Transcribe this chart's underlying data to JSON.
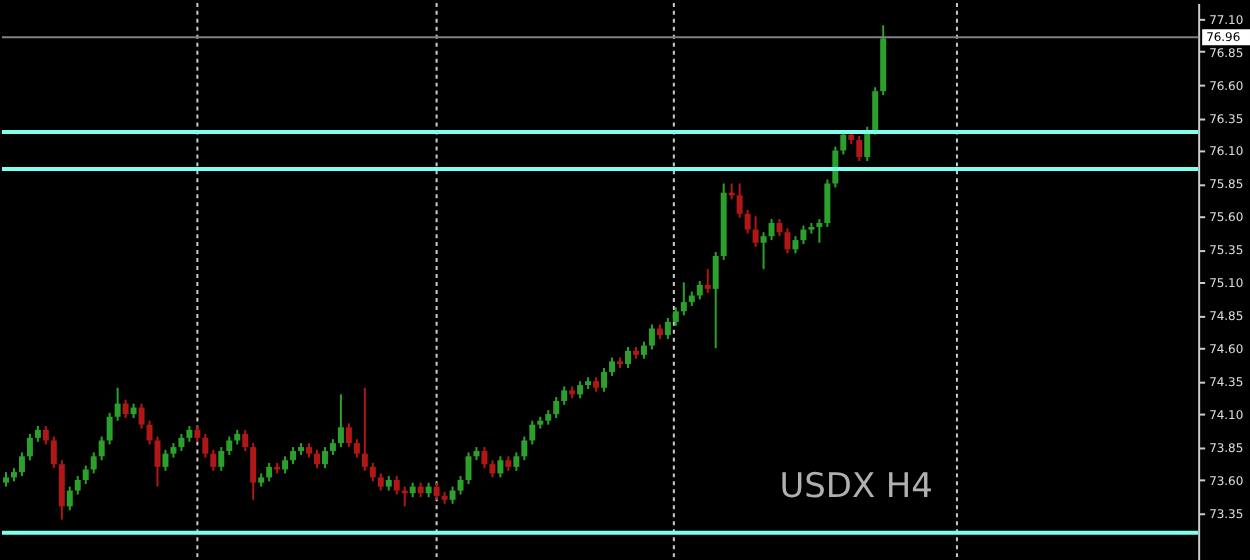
{
  "chart_data": {
    "type": "candlestick",
    "categories": [
      null,
      null,
      null,
      null,
      null,
      null,
      null,
      null,
      null,
      null,
      null,
      null,
      null,
      null,
      null,
      null,
      null,
      null,
      null,
      null,
      null,
      null,
      null,
      null,
      null,
      null,
      null,
      null,
      null,
      null,
      null,
      null,
      null,
      null,
      null,
      null,
      null,
      null,
      null,
      null,
      null,
      null,
      null,
      null,
      null,
      null,
      null,
      null,
      null,
      null,
      null,
      null,
      null,
      null,
      null,
      null,
      null,
      null,
      null,
      null,
      null,
      null,
      null,
      null,
      null,
      null,
      null,
      null,
      null,
      null,
      null,
      null,
      null,
      null,
      null,
      null,
      null,
      null,
      null,
      null,
      null,
      null,
      null,
      null,
      null,
      null,
      null,
      null,
      null,
      null,
      null,
      null,
      null,
      null,
      null,
      null,
      null,
      null,
      null,
      null,
      null,
      null,
      null,
      null,
      null,
      null,
      null,
      null,
      null,
      null,
      null,
      null,
      null,
      null,
      null,
      null,
      null,
      null,
      null,
      null,
      null,
      null,
      null,
      null,
      null,
      null,
      null,
      null,
      null,
      null,
      null,
      null,
      null,
      null,
      null,
      null,
      null,
      null,
      null,
      null,
      null,
      null,
      null,
      null,
      null,
      null,
      null,
      null,
      null,
      null
    ],
    "ohlc": [
      [
        73.58,
        73.66,
        73.55,
        73.62
      ],
      [
        73.62,
        73.69,
        73.59,
        73.66
      ],
      [
        73.66,
        73.81,
        73.63,
        73.78
      ],
      [
        73.78,
        73.95,
        73.75,
        73.92
      ],
      [
        73.92,
        74.01,
        73.89,
        73.98
      ],
      [
        73.98,
        74.01,
        73.87,
        73.9
      ],
      [
        73.9,
        73.93,
        73.69,
        73.72
      ],
      [
        73.72,
        73.75,
        73.3,
        73.4
      ],
      [
        73.4,
        73.55,
        73.37,
        73.52
      ],
      [
        73.52,
        73.63,
        73.49,
        73.6
      ],
      [
        73.6,
        73.71,
        73.57,
        73.68
      ],
      [
        73.68,
        73.81,
        73.65,
        73.78
      ],
      [
        73.78,
        73.93,
        73.75,
        73.9
      ],
      [
        73.9,
        74.11,
        73.87,
        74.08
      ],
      [
        74.08,
        74.3,
        74.05,
        74.18
      ],
      [
        74.18,
        74.21,
        74.07,
        74.1
      ],
      [
        74.1,
        74.18,
        74.07,
        74.15
      ],
      [
        74.15,
        74.18,
        73.99,
        74.02
      ],
      [
        74.02,
        74.05,
        73.87,
        73.9
      ],
      [
        73.9,
        73.93,
        73.55,
        73.7
      ],
      [
        73.7,
        73.83,
        73.67,
        73.8
      ],
      [
        73.8,
        73.88,
        73.77,
        73.85
      ],
      [
        73.85,
        73.95,
        73.82,
        73.92
      ],
      [
        73.92,
        74.01,
        73.89,
        73.98
      ],
      [
        73.98,
        74.01,
        73.89,
        73.92
      ],
      [
        73.92,
        73.95,
        73.77,
        73.8
      ],
      [
        73.8,
        73.83,
        73.67,
        73.7
      ],
      [
        73.7,
        73.85,
        73.67,
        73.82
      ],
      [
        73.82,
        73.93,
        73.79,
        73.9
      ],
      [
        73.9,
        73.98,
        73.87,
        73.95
      ],
      [
        73.95,
        73.98,
        73.82,
        73.85
      ],
      [
        73.85,
        73.88,
        73.45,
        73.58
      ],
      [
        73.58,
        73.65,
        73.55,
        73.62
      ],
      [
        73.62,
        73.73,
        73.59,
        73.7
      ],
      [
        73.7,
        73.73,
        73.65,
        73.68
      ],
      [
        73.68,
        73.78,
        73.65,
        73.75
      ],
      [
        73.75,
        73.85,
        73.72,
        73.82
      ],
      [
        73.82,
        73.88,
        73.79,
        73.85
      ],
      [
        73.85,
        73.88,
        73.77,
        73.8
      ],
      [
        73.8,
        73.83,
        73.69,
        73.72
      ],
      [
        73.72,
        73.85,
        73.69,
        73.82
      ],
      [
        73.82,
        73.91,
        73.79,
        73.88
      ],
      [
        73.88,
        74.25,
        73.85,
        74.0
      ],
      [
        74.0,
        74.03,
        73.85,
        73.88
      ],
      [
        73.88,
        73.91,
        73.77,
        73.8
      ],
      [
        73.8,
        74.3,
        73.67,
        73.7
      ],
      [
        73.7,
        73.73,
        73.59,
        73.62
      ],
      [
        73.62,
        73.65,
        73.52,
        73.55
      ],
      [
        73.55,
        73.63,
        73.52,
        73.6
      ],
      [
        73.6,
        73.63,
        73.49,
        73.52
      ],
      [
        73.52,
        73.55,
        73.4,
        73.5
      ],
      [
        73.5,
        73.58,
        73.47,
        73.55
      ],
      [
        73.55,
        73.58,
        73.47,
        73.5
      ],
      [
        73.5,
        73.58,
        73.47,
        73.55
      ],
      [
        73.55,
        73.58,
        73.45,
        73.48
      ],
      [
        73.48,
        73.51,
        73.42,
        73.45
      ],
      [
        73.45,
        73.55,
        73.42,
        73.52
      ],
      [
        73.52,
        73.63,
        73.49,
        73.6
      ],
      [
        73.6,
        73.81,
        73.57,
        73.78
      ],
      [
        73.78,
        73.85,
        73.75,
        73.82
      ],
      [
        73.82,
        73.85,
        73.69,
        73.72
      ],
      [
        73.72,
        73.75,
        73.62,
        73.65
      ],
      [
        73.65,
        73.78,
        73.62,
        73.75
      ],
      [
        73.75,
        73.78,
        73.67,
        73.7
      ],
      [
        73.7,
        73.81,
        73.67,
        73.78
      ],
      [
        73.78,
        73.93,
        73.75,
        73.9
      ],
      [
        73.9,
        74.05,
        73.87,
        74.02
      ],
      [
        74.02,
        74.08,
        73.99,
        74.05
      ],
      [
        74.05,
        74.13,
        74.02,
        74.1
      ],
      [
        74.1,
        74.23,
        74.07,
        74.2
      ],
      [
        74.2,
        74.31,
        74.17,
        74.28
      ],
      [
        74.28,
        74.31,
        74.22,
        74.25
      ],
      [
        74.25,
        74.35,
        74.22,
        74.32
      ],
      [
        74.32,
        74.38,
        74.29,
        74.35
      ],
      [
        74.35,
        74.38,
        74.27,
        74.3
      ],
      [
        74.3,
        74.45,
        74.27,
        74.42
      ],
      [
        74.42,
        74.53,
        74.39,
        74.5
      ],
      [
        74.5,
        74.53,
        74.45,
        74.48
      ],
      [
        74.48,
        74.61,
        74.45,
        74.58
      ],
      [
        74.58,
        74.61,
        74.52,
        74.55
      ],
      [
        74.55,
        74.65,
        74.52,
        74.62
      ],
      [
        74.62,
        74.78,
        74.59,
        74.75
      ],
      [
        74.75,
        74.78,
        74.67,
        74.7
      ],
      [
        74.7,
        74.83,
        74.67,
        74.8
      ],
      [
        74.8,
        74.91,
        74.77,
        74.88
      ],
      [
        74.88,
        75.1,
        74.85,
        74.95
      ],
      [
        74.95,
        75.03,
        74.92,
        75.0
      ],
      [
        75.0,
        75.11,
        74.97,
        75.08
      ],
      [
        75.08,
        75.2,
        75.02,
        75.05
      ],
      [
        75.05,
        75.33,
        74.6,
        75.3
      ],
      [
        75.3,
        75.85,
        75.27,
        75.78
      ],
      [
        75.78,
        75.85,
        75.73,
        75.76
      ],
      [
        75.76,
        75.85,
        75.59,
        75.62
      ],
      [
        75.62,
        75.65,
        75.47,
        75.5
      ],
      [
        75.5,
        75.6,
        75.37,
        75.4
      ],
      [
        75.4,
        75.48,
        75.2,
        75.45
      ],
      [
        75.45,
        75.58,
        75.42,
        75.55
      ],
      [
        75.55,
        75.58,
        75.45,
        75.48
      ],
      [
        75.48,
        75.51,
        75.32,
        75.35
      ],
      [
        75.35,
        75.45,
        75.32,
        75.42
      ],
      [
        75.42,
        75.53,
        75.39,
        75.5
      ],
      [
        75.5,
        75.55,
        75.47,
        75.52
      ],
      [
        75.52,
        75.58,
        75.4,
        75.55
      ],
      [
        75.55,
        75.88,
        75.52,
        75.85
      ],
      [
        75.85,
        76.13,
        75.82,
        76.1
      ],
      [
        76.1,
        76.25,
        76.07,
        76.22
      ],
      [
        76.22,
        76.25,
        76.15,
        76.18
      ],
      [
        76.18,
        76.21,
        76.02,
        76.05
      ],
      [
        76.05,
        76.28,
        76.02,
        76.25
      ],
      [
        76.25,
        76.58,
        76.22,
        76.55
      ],
      [
        76.55,
        77.05,
        76.52,
        76.95
      ],
      null,
      null,
      null,
      null,
      null,
      null,
      null,
      null,
      null,
      null,
      null,
      null,
      null,
      null,
      null,
      null,
      null,
      null,
      null,
      null,
      null,
      null,
      null,
      null,
      null,
      null,
      null,
      null,
      null,
      null,
      null,
      null,
      null,
      null,
      null,
      null,
      null,
      null,
      null
    ],
    "colors": [
      "#2ca02c",
      "#2ca02c",
      "#2ca02c",
      "#2ca02c",
      "#2ca02c",
      "#b01818",
      "#b01818",
      "#b01818",
      "#2ca02c",
      "#2ca02c",
      "#2ca02c",
      "#2ca02c",
      "#2ca02c",
      "#2ca02c",
      "#2ca02c",
      "#b01818",
      "#2ca02c",
      "#b01818",
      "#b01818",
      "#b01818",
      "#2ca02c",
      "#2ca02c",
      "#2ca02c",
      "#2ca02c",
      "#b01818",
      "#b01818",
      "#b01818",
      "#2ca02c",
      "#2ca02c",
      "#2ca02c",
      "#b01818",
      "#b01818",
      "#2ca02c",
      "#2ca02c",
      "#b01818",
      "#2ca02c",
      "#2ca02c",
      "#2ca02c",
      "#b01818",
      "#b01818",
      "#2ca02c",
      "#2ca02c",
      "#2ca02c",
      "#b01818",
      "#b01818",
      "#b01818",
      "#b01818",
      "#b01818",
      "#2ca02c",
      "#b01818",
      "#b01818",
      "#2ca02c",
      "#b01818",
      "#2ca02c",
      "#b01818",
      "#b01818",
      "#2ca02c",
      "#2ca02c",
      "#2ca02c",
      "#2ca02c",
      "#b01818",
      "#b01818",
      "#2ca02c",
      "#b01818",
      "#2ca02c",
      "#2ca02c",
      "#2ca02c",
      "#2ca02c",
      "#2ca02c",
      "#2ca02c",
      "#2ca02c",
      "#b01818",
      "#2ca02c",
      "#2ca02c",
      "#b01818",
      "#2ca02c",
      "#2ca02c",
      "#b01818",
      "#2ca02c",
      "#b01818",
      "#2ca02c",
      "#2ca02c",
      "#b01818",
      "#2ca02c",
      "#2ca02c",
      "#2ca02c",
      "#2ca02c",
      "#2ca02c",
      "#b01818",
      "#2ca02c",
      "#2ca02c",
      "#b01818",
      "#b01818",
      "#b01818",
      "#b01818",
      "#2ca02c",
      "#2ca02c",
      "#b01818",
      "#b01818",
      "#2ca02c",
      "#2ca02c",
      "#2ca02c",
      "#2ca02c",
      "#2ca02c",
      "#2ca02c",
      "#2ca02c",
      "#b01818",
      "#b01818",
      "#2ca02c",
      "#2ca02c",
      "#2ca02c",
      null,
      null,
      null,
      null,
      null,
      null,
      null,
      null,
      null,
      null,
      null,
      null,
      null,
      null,
      null,
      null,
      null,
      null,
      null,
      null,
      null,
      null,
      null,
      null,
      null,
      null,
      null,
      null,
      null,
      null,
      null,
      null,
      null,
      null,
      null,
      null,
      null,
      null,
      null
    ],
    "ylim": [
      73.0,
      77.22
    ],
    "yticks": [
      {
        "value": 73.35,
        "label": "73.35"
      },
      {
        "value": 73.6,
        "label": "73.60"
      },
      {
        "value": 73.85,
        "label": "73.85"
      },
      {
        "value": 74.1,
        "label": "74.10"
      },
      {
        "value": 74.35,
        "label": "74.35"
      },
      {
        "value": 74.6,
        "label": "74.60"
      },
      {
        "value": 74.85,
        "label": "74.85"
      },
      {
        "value": 75.1,
        "label": "75.10"
      },
      {
        "value": 75.35,
        "label": "75.35"
      },
      {
        "value": 75.6,
        "label": "75.60"
      },
      {
        "value": 75.85,
        "label": "75.85"
      },
      {
        "value": 76.1,
        "label": "76.10"
      },
      {
        "value": 76.35,
        "label": "76.35"
      },
      {
        "value": 76.6,
        "label": "76.60"
      },
      {
        "value": 76.85,
        "label": "76.85"
      },
      {
        "value": 77.1,
        "label": "77.10"
      }
    ],
    "ref_lines": [
      {
        "axis": "y",
        "value": 76.24,
        "color": "#7fffee"
      },
      {
        "axis": "y",
        "value": 75.96,
        "color": "#7fffee"
      },
      {
        "axis": "y",
        "value": 73.2,
        "color": "#7fffee"
      },
      {
        "axis": "y",
        "value": 76.96,
        "color": "#808080",
        "label": "76.96"
      }
    ],
    "annotations": [
      "USDX H4"
    ],
    "tick_labels": "y"
  }
}
